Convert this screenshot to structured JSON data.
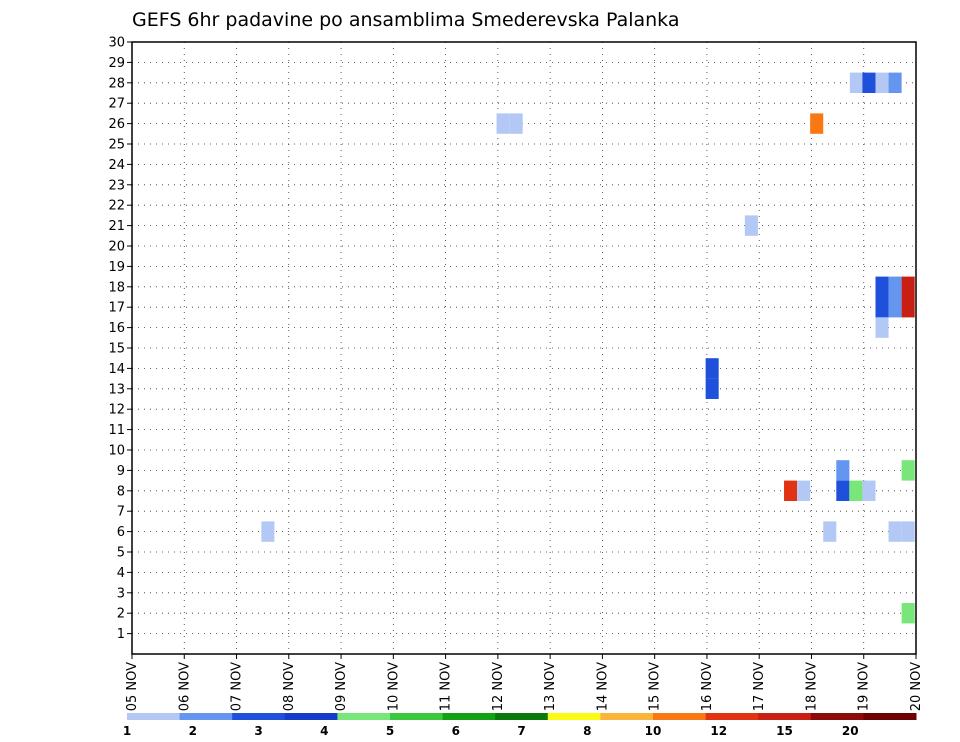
{
  "chart_data": {
    "type": "heatmap",
    "title": "GEFS 6hr padavine po ansamblima Smederevska Palanka",
    "xlabel": "",
    "ylabel": "",
    "x_tick_labels": [
      "05 NOV",
      "06 NOV",
      "07 NOV",
      "08 NOV",
      "09 NOV",
      "10 NOV",
      "11 NOV",
      "12 NOV",
      "13 NOV",
      "14 NOV",
      "15 NOV",
      "16 NOV",
      "17 NOV",
      "18 NOV",
      "19 NOV",
      "20 NOV"
    ],
    "y_tick_labels": [
      "1",
      "2",
      "3",
      "4",
      "5",
      "6",
      "7",
      "8",
      "9",
      "10",
      "11",
      "12",
      "13",
      "14",
      "15",
      "16",
      "17",
      "18",
      "19",
      "20",
      "21",
      "22",
      "23",
      "24",
      "25",
      "26",
      "27",
      "28",
      "29",
      "30"
    ],
    "x_range_days": [
      0,
      15
    ],
    "y_range": [
      0,
      30
    ],
    "grid": true,
    "cell_width_hours": 6,
    "legend": {
      "placement": "bottom",
      "labels": [
        "1",
        "2",
        "3",
        "4",
        "5",
        "6",
        "7",
        "8",
        "10",
        "12",
        "15",
        "20"
      ],
      "colors": [
        "#b4c8f5",
        "#6496f0",
        "#1e50dc",
        "#143cc8",
        "#78e678",
        "#3cc83c",
        "#14a014",
        "#0a780a",
        "#fafa14",
        "#fab43c",
        "#fa7814",
        "#e13214",
        "#c81e14",
        "#8c0a0a",
        "#6e0000"
      ]
    },
    "cells": [
      {
        "member": 28,
        "x": 13.86,
        "value": 1,
        "color": "#b4c8f5"
      },
      {
        "member": 28,
        "x": 14.1,
        "value": 3,
        "color": "#1e50dc"
      },
      {
        "member": 28,
        "x": 14.35,
        "value": 1,
        "color": "#b4c8f5"
      },
      {
        "member": 28,
        "x": 14.6,
        "value": 2,
        "color": "#6496f0"
      },
      {
        "member": 26,
        "x": 7.1,
        "value": 1,
        "color": "#b4c8f5"
      },
      {
        "member": 26,
        "x": 7.35,
        "value": 1,
        "color": "#b4c8f5"
      },
      {
        "member": 26,
        "x": 13.1,
        "value": 10,
        "color": "#fa7814"
      },
      {
        "member": 21,
        "x": 11.85,
        "value": 1,
        "color": "#b4c8f5"
      },
      {
        "member": 18,
        "x": 14.35,
        "value": 3,
        "color": "#1e50dc"
      },
      {
        "member": 18,
        "x": 14.6,
        "value": 2,
        "color": "#6496f0"
      },
      {
        "member": 18,
        "x": 14.85,
        "value": 12,
        "color": "#c81e14"
      },
      {
        "member": 17,
        "x": 14.35,
        "value": 3,
        "color": "#1e50dc"
      },
      {
        "member": 17,
        "x": 14.6,
        "value": 2,
        "color": "#6496f0"
      },
      {
        "member": 17,
        "x": 14.85,
        "value": 12,
        "color": "#c81e14"
      },
      {
        "member": 16,
        "x": 14.35,
        "value": 1,
        "color": "#b4c8f5"
      },
      {
        "member": 14,
        "x": 11.1,
        "value": 3,
        "color": "#1e50dc"
      },
      {
        "member": 13,
        "x": 11.1,
        "value": 3,
        "color": "#1e50dc"
      },
      {
        "member": 9,
        "x": 13.6,
        "value": 2,
        "color": "#6496f0"
      },
      {
        "member": 9,
        "x": 14.85,
        "value": 4,
        "color": "#78e678"
      },
      {
        "member": 8,
        "x": 12.6,
        "value": 12,
        "color": "#e13214"
      },
      {
        "member": 8,
        "x": 12.85,
        "value": 1,
        "color": "#b4c8f5"
      },
      {
        "member": 8,
        "x": 13.6,
        "value": 3,
        "color": "#1e50dc"
      },
      {
        "member": 8,
        "x": 13.85,
        "value": 4,
        "color": "#78e678"
      },
      {
        "member": 8,
        "x": 14.1,
        "value": 1,
        "color": "#b4c8f5"
      },
      {
        "member": 6,
        "x": 2.6,
        "value": 1,
        "color": "#b4c8f5"
      },
      {
        "member": 6,
        "x": 13.35,
        "value": 1,
        "color": "#b4c8f5"
      },
      {
        "member": 6,
        "x": 14.6,
        "value": 1,
        "color": "#b4c8f5"
      },
      {
        "member": 6,
        "x": 14.85,
        "value": 1,
        "color": "#b4c8f5"
      },
      {
        "member": 2,
        "x": 14.85,
        "value": 4,
        "color": "#78e678"
      }
    ]
  }
}
